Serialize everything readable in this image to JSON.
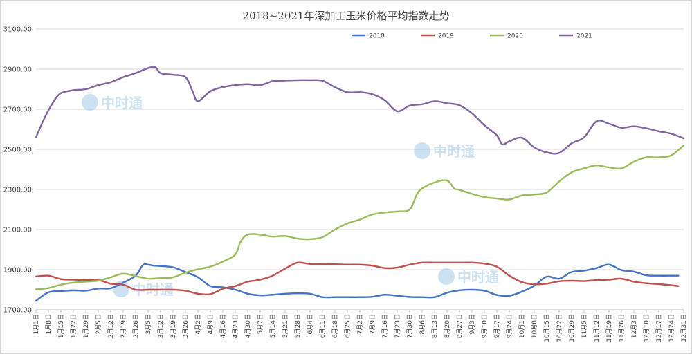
{
  "chart_data": {
    "type": "line",
    "title": "2018~2021年深加工玉米价格平均指数走势",
    "xlabel": "",
    "ylabel": "",
    "ylim": [
      1700,
      3100
    ],
    "y_ticks": [
      "1700.00",
      "1900.00",
      "2100.00",
      "2300.00",
      "2500.00",
      "2700.00",
      "2900.00",
      "3100.00"
    ],
    "grid": "horizontal",
    "legend_position": "top-right",
    "x_ticks": [
      "1月1日",
      "1月8日",
      "1月15日",
      "1月22日",
      "1月29日",
      "2月5日",
      "2月12日",
      "2月19日",
      "2月26日",
      "3月5日",
      "3月12日",
      "3月19日",
      "3月26日",
      "4月2日",
      "4月9日",
      "4月16日",
      "4月23日",
      "4月30日",
      "5月7日",
      "5月14日",
      "5月21日",
      "5月28日",
      "6月4日",
      "6月11日",
      "6月18日",
      "6月25日",
      "7月2日",
      "7月9日",
      "7月16日",
      "7月23日",
      "7月30日",
      "8月6日",
      "8月13日",
      "8月20日",
      "8月27日",
      "9月3日",
      "9月10日",
      "9月17日",
      "9月24日",
      "10月1日",
      "10月8日",
      "10月15日",
      "10月22日",
      "10月29日",
      "11月5日",
      "11月12日",
      "11月19日",
      "11月26日",
      "12月3日",
      "12月10日",
      "12月17日",
      "12月24日",
      "12月31日"
    ],
    "x_tick_days": [
      0,
      7,
      14,
      21,
      28,
      35,
      42,
      49,
      56,
      63,
      70,
      77,
      84,
      91,
      98,
      105,
      112,
      119,
      126,
      133,
      140,
      147,
      154,
      161,
      168,
      175,
      182,
      189,
      196,
      203,
      210,
      217,
      224,
      231,
      238,
      245,
      252,
      259,
      266,
      273,
      280,
      287,
      294,
      301,
      308,
      315,
      322,
      329,
      336,
      343,
      350,
      357,
      364
    ],
    "x_domain": [
      0,
      364
    ],
    "series": [
      {
        "name": "2018",
        "color": "#4472C4",
        "x": [
          0,
          7,
          14,
          21,
          28,
          35,
          42,
          49,
          56,
          60,
          63,
          66,
          70,
          77,
          84,
          91,
          98,
          105,
          112,
          119,
          126,
          133,
          140,
          147,
          154,
          161,
          168,
          175,
          182,
          189,
          196,
          203,
          210,
          217,
          224,
          231,
          238,
          245,
          252,
          259,
          266,
          273,
          280,
          287,
          294,
          301,
          308,
          315,
          322,
          329,
          336,
          343,
          350,
          357,
          361
        ],
        "y": [
          1745,
          1787,
          1793,
          1797,
          1795,
          1806,
          1807,
          1835,
          1870,
          1922,
          1925,
          1920,
          1918,
          1912,
          1888,
          1862,
          1818,
          1812,
          1800,
          1780,
          1772,
          1775,
          1780,
          1782,
          1780,
          1763,
          1763,
          1763,
          1763,
          1765,
          1775,
          1770,
          1764,
          1763,
          1763,
          1785,
          1797,
          1800,
          1795,
          1774,
          1770,
          1790,
          1820,
          1865,
          1855,
          1888,
          1895,
          1908,
          1925,
          1898,
          1890,
          1872,
          1870,
          1870,
          1870
        ]
      },
      {
        "name": "2019",
        "color": "#C0504D",
        "x": [
          0,
          7,
          14,
          21,
          28,
          35,
          42,
          49,
          56,
          63,
          70,
          77,
          84,
          91,
          98,
          105,
          112,
          119,
          126,
          133,
          140,
          147,
          154,
          161,
          168,
          175,
          182,
          189,
          196,
          203,
          210,
          217,
          224,
          231,
          238,
          245,
          252,
          259,
          266,
          273,
          280,
          287,
          294,
          301,
          308,
          315,
          322,
          329,
          336,
          343,
          350,
          357,
          361
        ],
        "y": [
          1866,
          1870,
          1853,
          1850,
          1848,
          1848,
          1830,
          1825,
          1800,
          1800,
          1800,
          1800,
          1795,
          1780,
          1778,
          1805,
          1818,
          1840,
          1850,
          1870,
          1905,
          1935,
          1928,
          1928,
          1927,
          1925,
          1925,
          1920,
          1908,
          1910,
          1925,
          1935,
          1935,
          1935,
          1935,
          1935,
          1930,
          1915,
          1870,
          1838,
          1827,
          1830,
          1842,
          1845,
          1843,
          1848,
          1850,
          1855,
          1840,
          1832,
          1828,
          1822,
          1818
        ]
      },
      {
        "name": "2020",
        "color": "#9BBB59",
        "x": [
          0,
          7,
          14,
          21,
          28,
          35,
          42,
          49,
          56,
          63,
          70,
          77,
          84,
          91,
          98,
          105,
          112,
          115,
          119,
          126,
          133,
          140,
          147,
          154,
          161,
          168,
          175,
          182,
          189,
          196,
          203,
          210,
          214,
          217,
          224,
          231,
          235,
          238,
          245,
          252,
          259,
          266,
          273,
          280,
          287,
          294,
          301,
          308,
          315,
          322,
          329,
          336,
          343,
          350,
          357,
          364
        ],
        "y": [
          1802,
          1808,
          1825,
          1835,
          1840,
          1845,
          1862,
          1880,
          1868,
          1855,
          1858,
          1862,
          1885,
          1902,
          1915,
          1940,
          1975,
          2040,
          2075,
          2075,
          2065,
          2068,
          2055,
          2052,
          2062,
          2100,
          2130,
          2150,
          2175,
          2185,
          2190,
          2200,
          2275,
          2305,
          2335,
          2345,
          2305,
          2298,
          2278,
          2262,
          2255,
          2250,
          2270,
          2275,
          2285,
          2340,
          2385,
          2405,
          2420,
          2410,
          2405,
          2438,
          2460,
          2460,
          2470,
          2520
        ]
      },
      {
        "name": "2021",
        "color": "#8064A2",
        "x": [
          0,
          5,
          10,
          14,
          21,
          28,
          35,
          42,
          49,
          56,
          63,
          67,
          70,
          77,
          84,
          88,
          91,
          98,
          105,
          112,
          119,
          126,
          133,
          140,
          147,
          154,
          161,
          168,
          175,
          182,
          189,
          196,
          203,
          210,
          217,
          224,
          231,
          238,
          245,
          252,
          259,
          262,
          266,
          273,
          280,
          287,
          294,
          301,
          308,
          315,
          322,
          329,
          336,
          343,
          350,
          357,
          364
        ],
        "y": [
          2560,
          2660,
          2740,
          2780,
          2795,
          2800,
          2820,
          2835,
          2860,
          2880,
          2905,
          2910,
          2880,
          2872,
          2860,
          2790,
          2740,
          2790,
          2810,
          2820,
          2825,
          2820,
          2840,
          2843,
          2845,
          2845,
          2842,
          2810,
          2785,
          2785,
          2775,
          2745,
          2690,
          2718,
          2725,
          2740,
          2730,
          2720,
          2680,
          2620,
          2570,
          2525,
          2540,
          2558,
          2510,
          2485,
          2482,
          2530,
          2560,
          2640,
          2628,
          2608,
          2615,
          2605,
          2590,
          2578,
          2555
        ]
      }
    ]
  }
}
